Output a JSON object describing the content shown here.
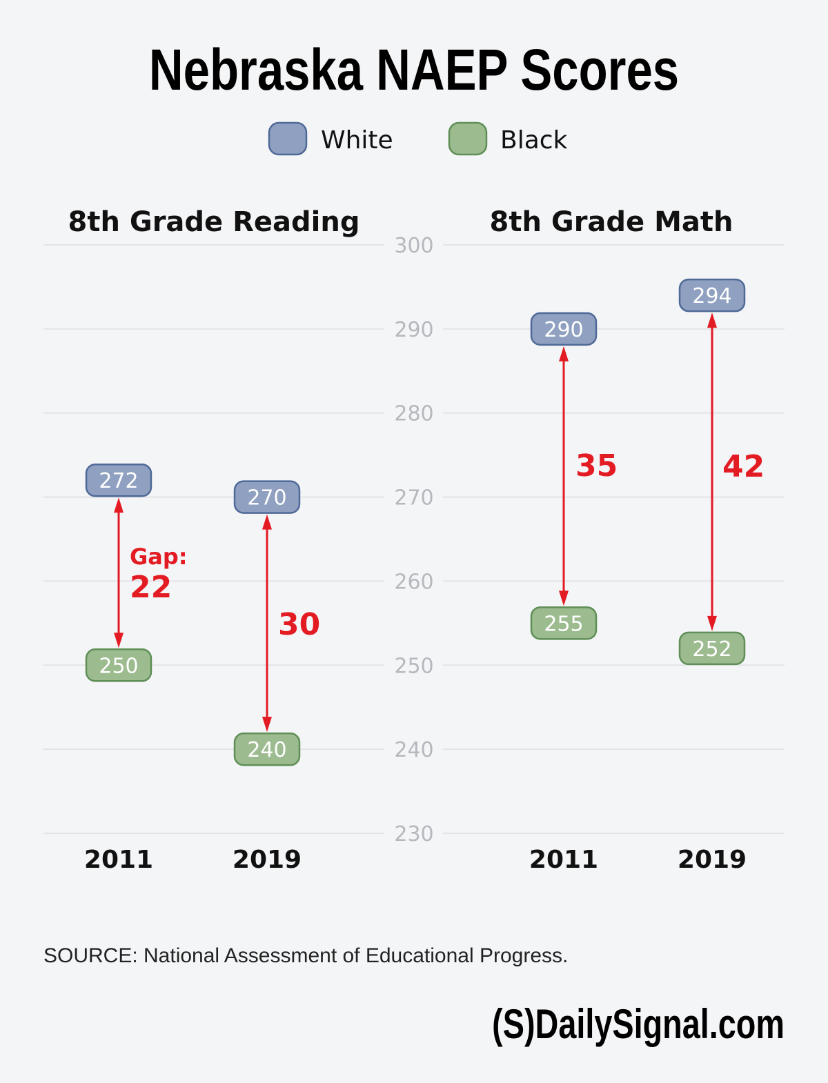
{
  "chart_data": {
    "type": "dot-range",
    "title": "Nebraska NAEP Scores",
    "legend": [
      {
        "name": "White",
        "fill": "#8fa0c0",
        "stroke": "#4f6a98"
      },
      {
        "name": "Black",
        "fill": "#9cbb8f",
        "stroke": "#5f8e56"
      }
    ],
    "legend_position": "top-center",
    "ylim": [
      230,
      300
    ],
    "yticks": [
      300,
      290,
      280,
      270,
      260,
      250,
      240,
      230
    ],
    "grid": true,
    "gap_color": "#e31b23",
    "panels": [
      {
        "title": "8th Grade Reading",
        "categories": [
          "2011",
          "2019"
        ],
        "series": [
          {
            "name": "White",
            "values": [
              272,
              270
            ]
          },
          {
            "name": "Black",
            "values": [
              250,
              240
            ]
          }
        ],
        "gaps": [
          {
            "prefix": "Gap:",
            "value": "22"
          },
          {
            "prefix": "",
            "value": "30"
          }
        ]
      },
      {
        "title": "8th Grade Math",
        "categories": [
          "2011",
          "2019"
        ],
        "series": [
          {
            "name": "White",
            "values": [
              290,
              294
            ]
          },
          {
            "name": "Black",
            "values": [
              255,
              252
            ]
          }
        ],
        "gaps": [
          {
            "prefix": "",
            "value": "35"
          },
          {
            "prefix": "",
            "value": "42"
          }
        ]
      }
    ]
  },
  "source": "SOURCE: National Assessment of Educational Progress.",
  "logo": "(S)DailySignal.com"
}
